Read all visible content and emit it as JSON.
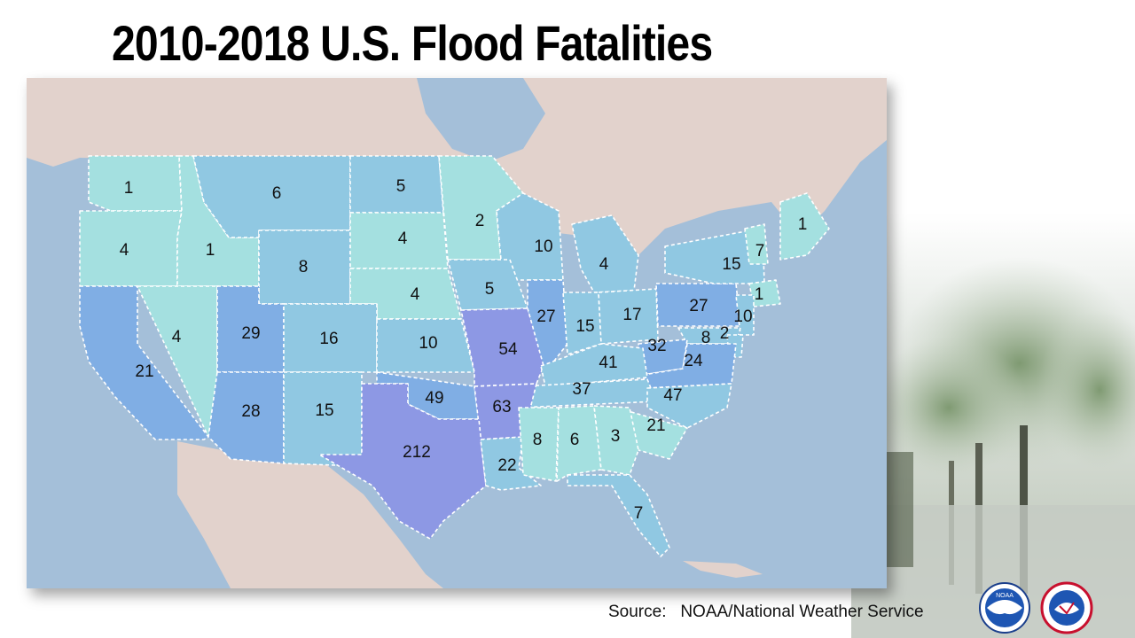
{
  "title": "2010-2018 U.S. Flood Fatalities",
  "source_text": "Source:   NOAA/National Weather Service",
  "logos": [
    {
      "name": "noaa-logo",
      "text": "NOAA"
    },
    {
      "name": "national-weather-service-logo",
      "text": "NATIONAL WEATHER SERVICE"
    }
  ],
  "colors": {
    "low": "#a4e0e0",
    "mid": "#90c8e2",
    "high": "#80aee4",
    "very_high": "#8d98e4",
    "ocean": "#a4bfd9",
    "land": "#e2d2cc",
    "border": "#ffffff"
  },
  "state_fatalities": [
    {
      "state": "Washington",
      "value": "1"
    },
    {
      "state": "Oregon",
      "value": "4"
    },
    {
      "state": "Idaho",
      "value": "1"
    },
    {
      "state": "Montana",
      "value": "6"
    },
    {
      "state": "Wyoming",
      "value": "8"
    },
    {
      "state": "North Dakota",
      "value": "5"
    },
    {
      "state": "South Dakota",
      "value": "4"
    },
    {
      "state": "Nebraska",
      "value": "4"
    },
    {
      "state": "Minnesota",
      "value": "2"
    },
    {
      "state": "Wisconsin",
      "value": "10"
    },
    {
      "state": "Michigan",
      "value": "4"
    },
    {
      "state": "Iowa",
      "value": "5"
    },
    {
      "state": "California",
      "value": "21"
    },
    {
      "state": "Nevada",
      "value": "4"
    },
    {
      "state": "Utah",
      "value": "29"
    },
    {
      "state": "Colorado",
      "value": "16"
    },
    {
      "state": "Kansas",
      "value": "10"
    },
    {
      "state": "Missouri",
      "value": "54"
    },
    {
      "state": "Illinois",
      "value": "27"
    },
    {
      "state": "Indiana",
      "value": "15"
    },
    {
      "state": "Ohio",
      "value": "17"
    },
    {
      "state": "Pennsylvania",
      "value": "27"
    },
    {
      "state": "New York",
      "value": "15"
    },
    {
      "state": "Vermont",
      "value": "7"
    },
    {
      "state": "Maine",
      "value": "1"
    },
    {
      "state": "Connecticut",
      "value": "1"
    },
    {
      "state": "New Jersey",
      "value": "10"
    },
    {
      "state": "Maryland",
      "value": "8"
    },
    {
      "state": "Delaware",
      "value": "2"
    },
    {
      "state": "West Virginia",
      "value": "32"
    },
    {
      "state": "Virginia",
      "value": "24"
    },
    {
      "state": "Kentucky",
      "value": "41"
    },
    {
      "state": "Tennessee",
      "value": "37"
    },
    {
      "state": "North Carolina",
      "value": "47"
    },
    {
      "state": "South Carolina",
      "value": "21"
    },
    {
      "state": "Arizona",
      "value": "28"
    },
    {
      "state": "New Mexico",
      "value": "15"
    },
    {
      "state": "Oklahoma",
      "value": "49"
    },
    {
      "state": "Arkansas",
      "value": "63"
    },
    {
      "state": "Texas",
      "value": "212"
    },
    {
      "state": "Louisiana",
      "value": "22"
    },
    {
      "state": "Mississippi",
      "value": "8"
    },
    {
      "state": "Alabama",
      "value": "6"
    },
    {
      "state": "Georgia",
      "value": "3"
    },
    {
      "state": "Florida",
      "value": "7"
    }
  ]
}
